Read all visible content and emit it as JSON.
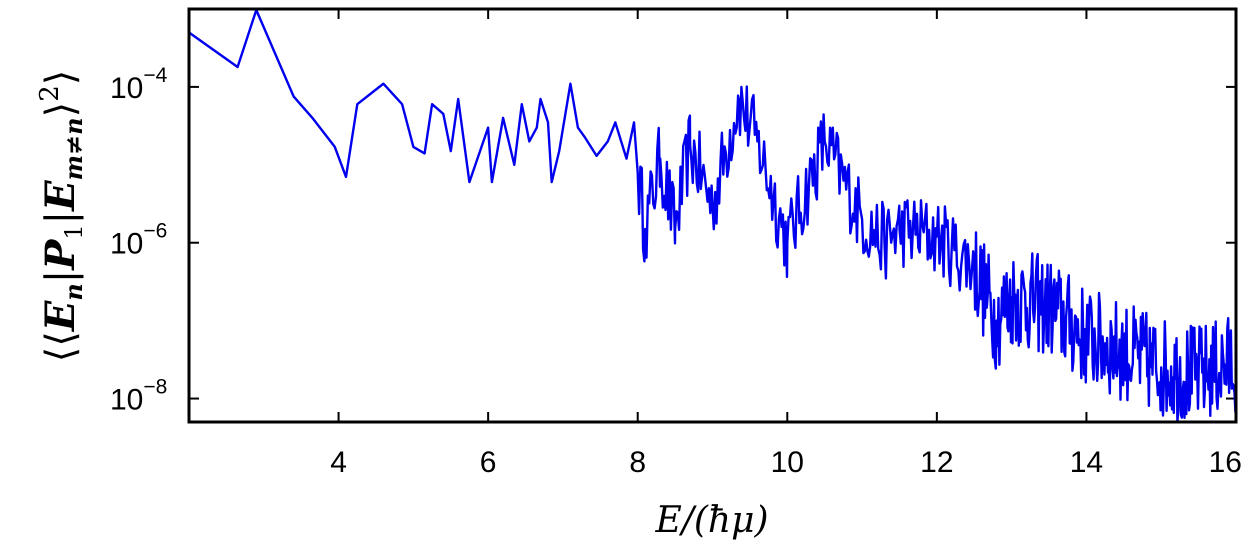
{
  "chart_data": {
    "type": "line",
    "title": "",
    "xlabel": "E/(ħμ)",
    "ylabel": {
      "open": "⟨⟨",
      "E": "E",
      "n": "n",
      "P": "P",
      "one": "1",
      "m_ne_n": "m≠n",
      "close": "⟩",
      "sq": "2",
      "outer_close": "⟩"
    },
    "xlim": [
      2,
      16
    ],
    "ylim": [
      5e-09,
      0.001
    ],
    "yscale": "log",
    "grid": false,
    "color": "#0000ee",
    "xticks": [
      "4",
      "6",
      "8",
      "10",
      "12",
      "14",
      "16"
    ],
    "yticks": [
      {
        "base": "10",
        "exp": "−4",
        "value": 0.0001
      },
      {
        "base": "10",
        "exp": "−6",
        "value": 1e-06
      },
      {
        "base": "10",
        "exp": "−8",
        "value": 1e-08
      }
    ],
    "series": [
      {
        "anchor_points": [
          [
            2.0,
            0.0005
          ],
          [
            2.65,
            0.00018
          ],
          [
            2.9,
            0.001
          ],
          [
            3.4,
            7.5e-05
          ],
          [
            3.65,
            4e-05
          ],
          [
            3.95,
            1.7e-05
          ],
          [
            4.1,
            7e-06
          ],
          [
            4.25,
            6e-05
          ],
          [
            4.6,
            0.00011
          ],
          [
            4.85,
            6e-05
          ],
          [
            5.0,
            1.7e-05
          ],
          [
            5.15,
            1.4e-05
          ],
          [
            5.25,
            6e-05
          ],
          [
            5.4,
            4.5e-05
          ],
          [
            5.5,
            1.5e-05
          ],
          [
            5.6,
            7e-05
          ],
          [
            5.75,
            6e-06
          ],
          [
            6.0,
            3e-05
          ],
          [
            6.05,
            6e-06
          ],
          [
            6.2,
            4e-05
          ],
          [
            6.35,
            1e-05
          ],
          [
            6.45,
            6e-05
          ],
          [
            6.55,
            2e-05
          ],
          [
            6.65,
            3e-05
          ],
          [
            6.7,
            7e-05
          ],
          [
            6.8,
            3.5e-05
          ],
          [
            6.85,
            6e-06
          ],
          [
            6.95,
            1.5e-05
          ],
          [
            7.1,
            0.00011
          ],
          [
            7.2,
            3e-05
          ],
          [
            7.3,
            2.2e-05
          ],
          [
            7.45,
            1.3e-05
          ],
          [
            7.6,
            2e-05
          ],
          [
            7.7,
            3.5e-05
          ],
          [
            7.85,
            1.2e-05
          ],
          [
            7.95,
            3.5e-05
          ],
          [
            8.0,
            8e-06
          ],
          [
            8.1,
            1.5e-06
          ],
          [
            8.3,
            1.2e-05
          ],
          [
            8.5,
            1.5e-06
          ],
          [
            8.7,
            1.8e-05
          ],
          [
            9.0,
            3e-06
          ],
          [
            9.35,
            7e-05
          ],
          [
            9.6,
            2e-05
          ],
          [
            10.0,
            1e-06
          ],
          [
            10.5,
            2e-05
          ],
          [
            11.0,
            2e-06
          ],
          [
            11.3,
            1e-06
          ],
          [
            11.5,
            1.5e-06
          ],
          [
            12.0,
            1.2e-06
          ],
          [
            12.5,
            5e-07
          ],
          [
            12.8,
            1e-07
          ],
          [
            13.0,
            2e-07
          ],
          [
            13.5,
            1.5e-07
          ],
          [
            14.0,
            6e-08
          ],
          [
            14.5,
            4e-08
          ],
          [
            15.0,
            2.5e-08
          ],
          [
            15.5,
            2e-08
          ],
          [
            16.0,
            3e-08
          ]
        ]
      }
    ]
  }
}
